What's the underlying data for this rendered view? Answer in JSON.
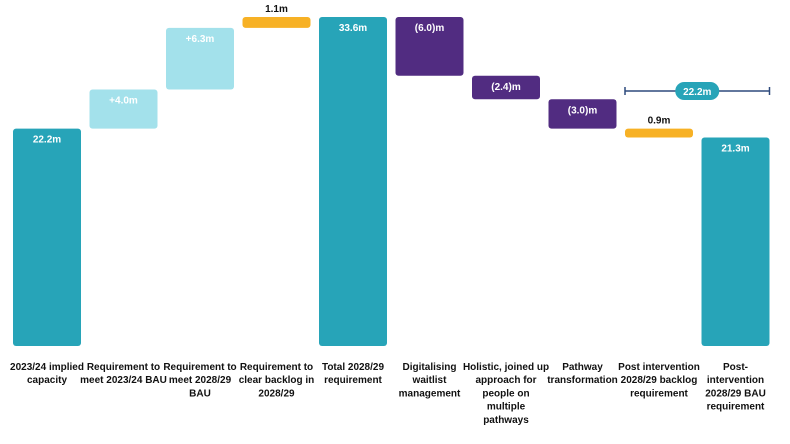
{
  "colors": {
    "total": "#27A4B8",
    "increase": "#A3E1EB",
    "backlog": "#F7B125",
    "decrease": "#512C81",
    "bracket": "#2E4A7D"
  },
  "chart_data": {
    "type": "bar",
    "subtype": "waterfall",
    "title": "",
    "xlabel": "",
    "ylabel": "",
    "ylim": [
      0,
      35
    ],
    "grid": false,
    "legend": "none",
    "categories": [
      "2023/24 implied capacity",
      "Requirement to meet 2023/24 BAU",
      "Requirement to meet 2028/29 BAU",
      "Requirement to clear backlog in 2028/29",
      "Total 2028/29 requirement",
      "Digitalising waitlist management",
      "Holistic, joined up approach for people on multiple pathways",
      "Pathway transformation",
      "Post intervention 2028/29 backlog requirement",
      "Post-intervention 2028/29 BAU requirement"
    ],
    "category_label_lines": [
      [
        "2023/24 implied",
        "capacity"
      ],
      [
        "Requirement to",
        "meet 2023/24 BAU"
      ],
      [
        "Requirement to",
        "meet 2028/29",
        "BAU"
      ],
      [
        "Requirement to",
        "clear backlog in",
        "2028/29"
      ],
      [
        "Total 2028/29",
        "requirement"
      ],
      [
        "Digitalising",
        "waitlist",
        "management"
      ],
      [
        "Holistic, joined up",
        "approach for",
        "people on",
        "multiple",
        "pathways"
      ],
      [
        "Pathway",
        "transformation"
      ],
      [
        "Post intervention",
        "2028/29 backlog",
        "requirement"
      ],
      [
        "Post-",
        "intervention",
        "2028/29 BAU",
        "requirement"
      ]
    ],
    "bars": [
      {
        "kind": "total",
        "start": 0,
        "end": 22.2,
        "label": "22.2m"
      },
      {
        "kind": "increase",
        "start": 22.2,
        "end": 26.2,
        "label": "+4.0m"
      },
      {
        "kind": "increase",
        "start": 26.2,
        "end": 32.5,
        "label": "+6.3m"
      },
      {
        "kind": "backlog",
        "start": 32.5,
        "end": 33.6,
        "label": "1.1m"
      },
      {
        "kind": "total",
        "start": 0,
        "end": 33.6,
        "label": "33.6m"
      },
      {
        "kind": "decrease",
        "start": 33.6,
        "end": 27.6,
        "label": "(6.0)m"
      },
      {
        "kind": "decrease",
        "start": 27.6,
        "end": 25.2,
        "label": "(2.4)m"
      },
      {
        "kind": "decrease",
        "start": 25.2,
        "end": 22.2,
        "label": "(3.0)m"
      },
      {
        "kind": "backlog",
        "start": 22.2,
        "end": 21.3,
        "label": "0.9m"
      },
      {
        "kind": "total",
        "start": 0,
        "end": 21.3,
        "label": "21.3m"
      }
    ],
    "annotations": [
      {
        "text": "22.2m",
        "spans": [
          8,
          9
        ],
        "value": 22.2
      }
    ]
  }
}
